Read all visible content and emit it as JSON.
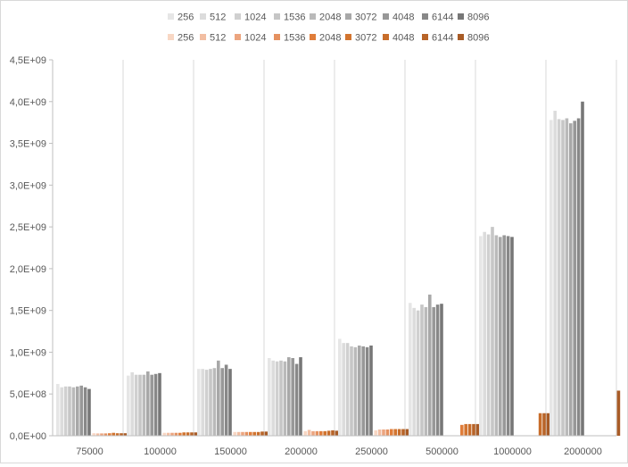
{
  "chart_data": {
    "type": "bar",
    "title": "",
    "xlabel": "",
    "ylabel": "",
    "ylim": [
      0,
      4500000000
    ],
    "y_ticks": [
      0,
      500000000,
      1000000000,
      1500000000,
      2000000000,
      2500000000,
      3000000000,
      3500000000,
      4000000000,
      4500000000
    ],
    "y_tick_labels": [
      "0,0E+00",
      "5,0E+08",
      "1,0E+09",
      "1,5E+09",
      "2,0E+09",
      "2,5E+09",
      "3,0E+09",
      "3,5E+09",
      "4,0E+09",
      "4,5E+09"
    ],
    "categories": [
      "75000",
      "100000",
      "150000",
      "200000",
      "250000",
      "500000",
      "1000000",
      "2000000"
    ],
    "grid": "vertical category separators",
    "legend_position": "top",
    "series_groups": [
      {
        "series": [
          {
            "name": "256",
            "color": "#e6e6e6",
            "values": [
              620000000,
              720000000,
              800000000,
              930000000,
              1160000000,
              1590000000,
              2390000000,
              3780000000
            ]
          },
          {
            "name": "512",
            "color": "#dcdcdc",
            "values": [
              580000000,
              760000000,
              800000000,
              900000000,
              1110000000,
              1530000000,
              2440000000,
              3890000000
            ]
          },
          {
            "name": "1024",
            "color": "#d0d0d0",
            "values": [
              590000000,
              730000000,
              790000000,
              890000000,
              1110000000,
              1500000000,
              2410000000,
              3790000000
            ]
          },
          {
            "name": "1536",
            "color": "#c6c6c6",
            "values": [
              590000000,
              730000000,
              800000000,
              900000000,
              1070000000,
              1570000000,
              2500000000,
              3780000000
            ]
          },
          {
            "name": "2048",
            "color": "#bababa",
            "values": [
              580000000,
              730000000,
              810000000,
              890000000,
              1060000000,
              1540000000,
              2400000000,
              3800000000
            ]
          },
          {
            "name": "3072",
            "color": "#a8a8a8",
            "values": [
              590000000,
              770000000,
              900000000,
              940000000,
              1080000000,
              1690000000,
              2380000000,
              3740000000
            ]
          },
          {
            "name": "4048",
            "color": "#989898",
            "values": [
              600000000,
              730000000,
              810000000,
              930000000,
              1070000000,
              1540000000,
              2400000000,
              3770000000
            ]
          },
          {
            "name": "6144",
            "color": "#888888",
            "values": [
              580000000,
              740000000,
              850000000,
              860000000,
              1060000000,
              1570000000,
              2390000000,
              3800000000
            ]
          },
          {
            "name": "8096",
            "color": "#777777",
            "values": [
              560000000,
              750000000,
              800000000,
              940000000,
              1080000000,
              1580000000,
              2380000000,
              4000000000
            ]
          }
        ]
      },
      {
        "series": [
          {
            "name": "256",
            "color": "#f8d7c4",
            "values": [
              30000000,
              35000000,
              45000000,
              55000000,
              65000000,
              0,
              0,
              0
            ]
          },
          {
            "name": "512",
            "color": "#f2bea2",
            "values": [
              28000000,
              35000000,
              45000000,
              70000000,
              75000000,
              0,
              0,
              0
            ]
          },
          {
            "name": "1024",
            "color": "#eca57f",
            "values": [
              28000000,
              35000000,
              45000000,
              55000000,
              75000000,
              0,
              0,
              0
            ]
          },
          {
            "name": "1536",
            "color": "#e59160",
            "values": [
              28000000,
              35000000,
              45000000,
              55000000,
              75000000,
              0,
              0,
              0
            ]
          },
          {
            "name": "2048",
            "color": "#e07d3a",
            "values": [
              30000000,
              35000000,
              45000000,
              55000000,
              80000000,
              130000000,
              0,
              0
            ]
          },
          {
            "name": "3072",
            "color": "#d2742f",
            "values": [
              35000000,
              40000000,
              45000000,
              55000000,
              80000000,
              140000000,
              0,
              0
            ]
          },
          {
            "name": "4048",
            "color": "#c86d2a",
            "values": [
              30000000,
              40000000,
              45000000,
              60000000,
              80000000,
              140000000,
              270000000,
              0
            ]
          },
          {
            "name": "6144",
            "color": "#b86428",
            "values": [
              30000000,
              40000000,
              50000000,
              65000000,
              80000000,
              140000000,
              270000000,
              0
            ]
          },
          {
            "name": "8096",
            "color": "#a85b26",
            "values": [
              30000000,
              40000000,
              50000000,
              60000000,
              80000000,
              140000000,
              270000000,
              540000000
            ]
          }
        ]
      }
    ]
  }
}
